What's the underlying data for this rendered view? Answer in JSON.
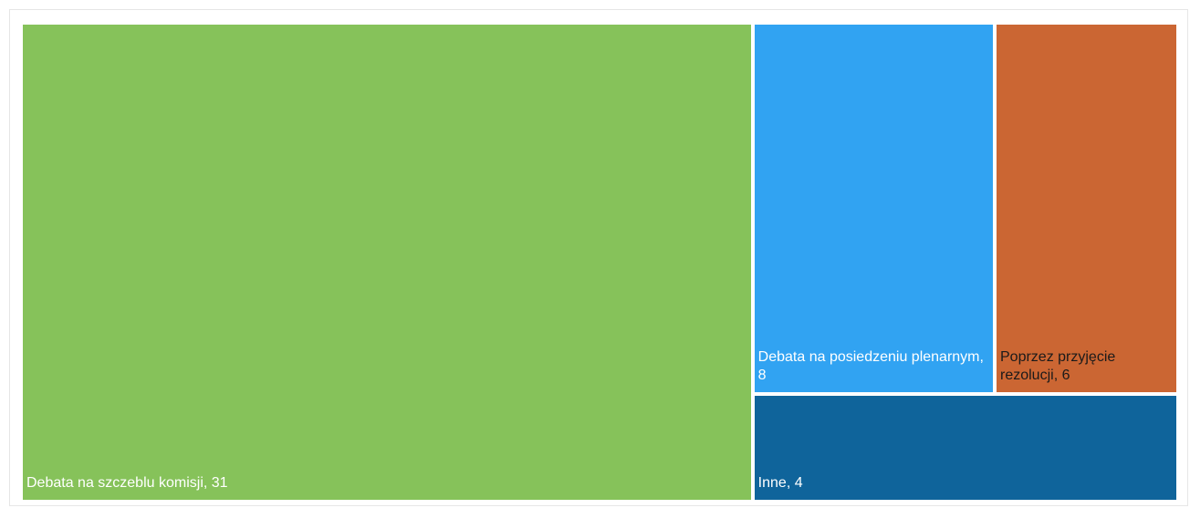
{
  "chart_data": {
    "type": "treemap",
    "values": [
      31,
      8,
      6,
      4
    ],
    "value_labels": [
      "Debata na szczeblu komisji, 31",
      "Debata na posiedzeniu plenarnym, 8",
      "Poprzez przyjęcie rezolucji, 6",
      "Inne, 4"
    ],
    "colors": [
      "#86c25a",
      "#31a3f2",
      "#cb6633",
      "#0f649b"
    ],
    "text_colors": [
      "#ffffff",
      "#ffffff",
      "#1a1a1a",
      "#ffffff"
    ]
  }
}
